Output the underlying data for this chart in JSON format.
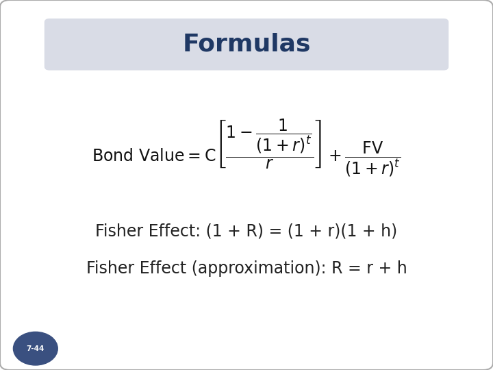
{
  "title": "Formulas",
  "title_color": "#1F3864",
  "title_bg_color": "#D9DCE6",
  "bg_color": "#FFFFFF",
  "border_color": "#AAAAAA",
  "fisher1": "Fisher Effect: (1 + R) = (1 + r)(1 + h)",
  "fisher2": "Fisher Effect (approximation): R = r + h",
  "badge_text": "7-44",
  "badge_bg": "#3A5080",
  "badge_text_color": "#FFFFFF",
  "text_color": "#222222",
  "formula_color": "#111111"
}
